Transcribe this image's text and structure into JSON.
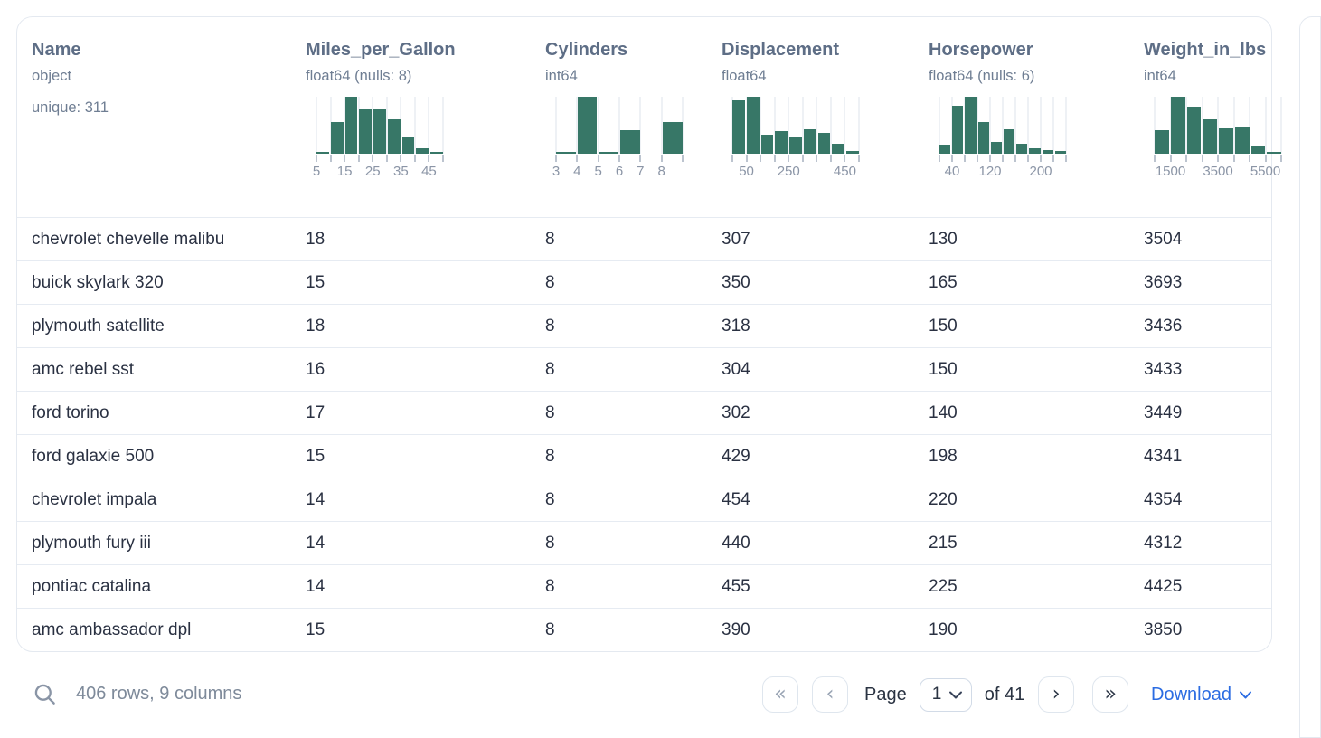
{
  "columns": [
    {
      "name": "Name",
      "type": "object",
      "extra": "unique: 311"
    },
    {
      "name": "Miles_per_Gallon",
      "type": "float64 (nulls: 8)",
      "hist": {
        "type": "bar",
        "bars": [
          3,
          55,
          100,
          80,
          79,
          60,
          30,
          10,
          3
        ],
        "tick_labels": [
          {
            "t": "5",
            "at": 0
          },
          {
            "t": "15",
            "at": 2
          },
          {
            "t": "25",
            "at": 4
          },
          {
            "t": "35",
            "at": 6
          },
          {
            "t": "45",
            "at": 8
          }
        ]
      }
    },
    {
      "name": "Cylinders",
      "type": "int64",
      "hist": {
        "type": "bar",
        "bars": [
          3,
          100,
          2,
          42,
          0,
          55
        ],
        "tick_labels": [
          {
            "t": "3",
            "at": 0
          },
          {
            "t": "4",
            "at": 1
          },
          {
            "t": "5",
            "at": 2
          },
          {
            "t": "6",
            "at": 3
          },
          {
            "t": "7",
            "at": 4
          },
          {
            "t": "8",
            "at": 5
          }
        ]
      }
    },
    {
      "name": "Displacement",
      "type": "float64",
      "hist": {
        "type": "bar",
        "bars": [
          94,
          100,
          33,
          40,
          28,
          43,
          37,
          18,
          5
        ],
        "tick_labels": [
          {
            "t": "50",
            "at": 1
          },
          {
            "t": "250",
            "at": 4
          },
          {
            "t": "450",
            "at": 8
          }
        ]
      }
    },
    {
      "name": "Horsepower",
      "type": "float64 (nulls: 6)",
      "hist": {
        "type": "bar",
        "bars": [
          16,
          84,
          100,
          56,
          20,
          43,
          17,
          10,
          7,
          5
        ],
        "tick_labels": [
          {
            "t": "40",
            "at": 1
          },
          {
            "t": "120",
            "at": 4
          },
          {
            "t": "200",
            "at": 8
          }
        ]
      }
    },
    {
      "name": "Weight_in_lbs",
      "type": "int64",
      "hist": {
        "type": "bar",
        "bars": [
          42,
          100,
          82,
          60,
          44,
          48,
          15,
          3
        ],
        "tick_labels": [
          {
            "t": "1500",
            "at": 1
          },
          {
            "t": "3500",
            "at": 4
          },
          {
            "t": "5500",
            "at": 7
          }
        ]
      }
    }
  ],
  "rows": [
    [
      "chevrolet chevelle malibu",
      "18",
      "8",
      "307",
      "130",
      "3504"
    ],
    [
      "buick skylark 320",
      "15",
      "8",
      "350",
      "165",
      "3693"
    ],
    [
      "plymouth satellite",
      "18",
      "8",
      "318",
      "150",
      "3436"
    ],
    [
      "amc rebel sst",
      "16",
      "8",
      "304",
      "150",
      "3433"
    ],
    [
      "ford torino",
      "17",
      "8",
      "302",
      "140",
      "3449"
    ],
    [
      "ford galaxie 500",
      "15",
      "8",
      "429",
      "198",
      "4341"
    ],
    [
      "chevrolet impala",
      "14",
      "8",
      "454",
      "220",
      "4354"
    ],
    [
      "plymouth fury iii",
      "14",
      "8",
      "440",
      "215",
      "4312"
    ],
    [
      "pontiac catalina",
      "14",
      "8",
      "455",
      "225",
      "4425"
    ],
    [
      "amc ambassador dpl",
      "15",
      "8",
      "390",
      "190",
      "3850"
    ]
  ],
  "footer": {
    "status": "406 rows, 9 columns",
    "first_button": "«",
    "prev_button": "‹",
    "page_label": "Page",
    "page_value": "1",
    "of_label": "of 41",
    "next_button": "›",
    "last_button": "»",
    "download_label": "Download"
  },
  "colors": {
    "bar": "#377767",
    "accent_blue": "#2b6ce2",
    "header_text": "#5e6e86",
    "body_text": "#2a3142"
  }
}
